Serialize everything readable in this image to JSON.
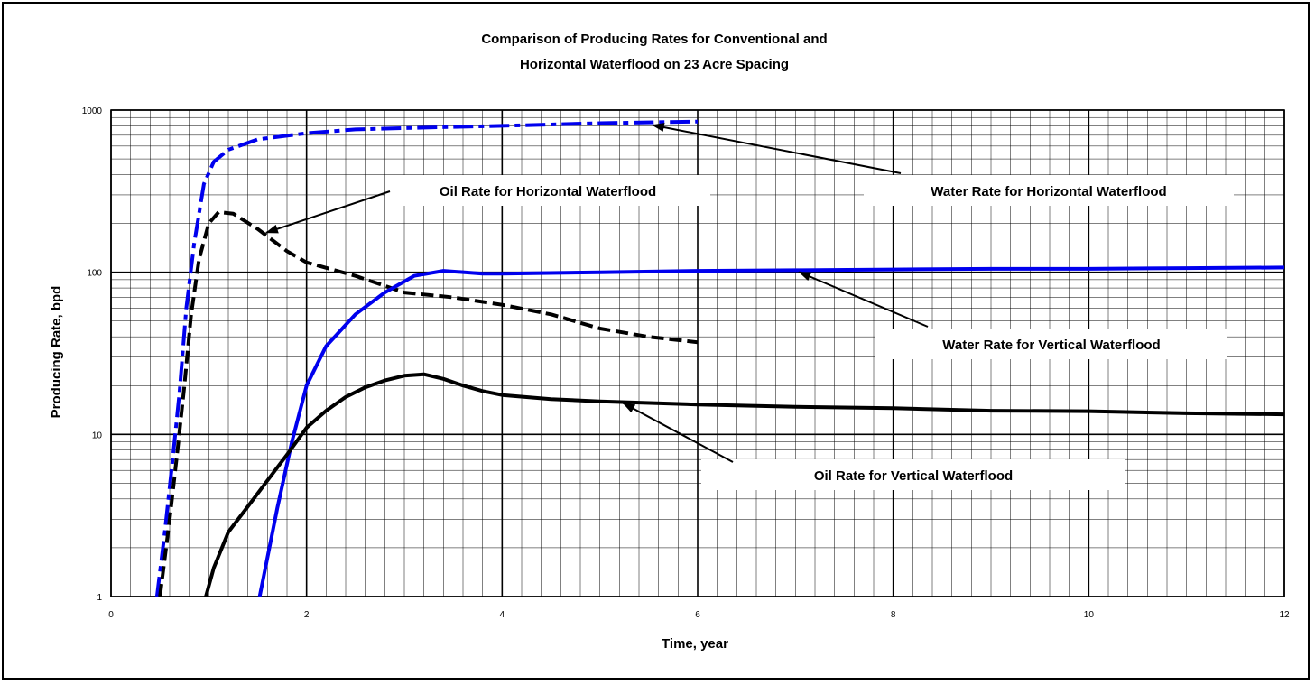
{
  "chart_data": {
    "type": "line",
    "title": [
      "Comparison of Producing Rates for Conventional and",
      "Horizontal Waterflood on 23 Acre Spacing"
    ],
    "xlabel": "Time, year",
    "ylabel": "Producing Rate, bpd",
    "xlim": [
      0,
      12
    ],
    "ylim": [
      1,
      1000
    ],
    "yscale": "log",
    "grid": true,
    "x_ticks": [
      0,
      2,
      4,
      6,
      8,
      10,
      12
    ],
    "y_ticks": [
      1,
      10,
      100,
      1000
    ],
    "series": [
      {
        "name": "Water Rate for Horizontal Waterflood",
        "color": "#0000ee",
        "style": "dashdot",
        "points": [
          [
            0.47,
            1
          ],
          [
            0.55,
            2.5
          ],
          [
            0.63,
            7
          ],
          [
            0.7,
            18
          ],
          [
            0.77,
            60
          ],
          [
            0.85,
            150
          ],
          [
            0.95,
            350
          ],
          [
            1.05,
            480
          ],
          [
            1.2,
            570
          ],
          [
            1.5,
            660
          ],
          [
            2.0,
            720
          ],
          [
            2.5,
            760
          ],
          [
            3.0,
            775
          ],
          [
            4.0,
            800
          ],
          [
            5.0,
            830
          ],
          [
            6.0,
            850
          ]
        ]
      },
      {
        "name": "Oil Rate for Horizontal Waterflood",
        "color": "#000000",
        "style": "dash",
        "points": [
          [
            0.5,
            1
          ],
          [
            0.6,
            3
          ],
          [
            0.68,
            8
          ],
          [
            0.75,
            20
          ],
          [
            0.82,
            55
          ],
          [
            0.9,
            120
          ],
          [
            1.0,
            200
          ],
          [
            1.1,
            235
          ],
          [
            1.25,
            230
          ],
          [
            1.5,
            185
          ],
          [
            1.8,
            135
          ],
          [
            2.0,
            115
          ],
          [
            2.5,
            95
          ],
          [
            3.0,
            75
          ],
          [
            3.5,
            70
          ],
          [
            4.0,
            63
          ],
          [
            4.5,
            55
          ],
          [
            5.0,
            45
          ],
          [
            5.5,
            40
          ],
          [
            6.0,
            37
          ]
        ]
      },
      {
        "name": "Water Rate for Vertical Waterflood",
        "color": "#0000ee",
        "style": "solid",
        "points": [
          [
            1.52,
            1
          ],
          [
            1.7,
            3.5
          ],
          [
            1.85,
            9
          ],
          [
            2.0,
            20
          ],
          [
            2.2,
            35
          ],
          [
            2.5,
            55
          ],
          [
            2.8,
            75
          ],
          [
            3.1,
            95
          ],
          [
            3.4,
            102
          ],
          [
            3.8,
            98
          ],
          [
            4.0,
            98
          ],
          [
            5.0,
            100
          ],
          [
            6.0,
            102
          ],
          [
            7.0,
            103
          ],
          [
            8.0,
            104
          ],
          [
            9.0,
            105
          ],
          [
            10.0,
            105
          ],
          [
            11.0,
            106
          ],
          [
            12.0,
            107
          ]
        ]
      },
      {
        "name": "Oil Rate for Vertical Waterflood",
        "color": "#000000",
        "style": "solid",
        "points": [
          [
            0.97,
            1
          ],
          [
            1.05,
            1.5
          ],
          [
            1.2,
            2.5
          ],
          [
            1.4,
            3.6
          ],
          [
            1.6,
            5.2
          ],
          [
            1.8,
            7.5
          ],
          [
            2.0,
            11
          ],
          [
            2.2,
            14
          ],
          [
            2.4,
            17
          ],
          [
            2.6,
            19.5
          ],
          [
            2.8,
            21.5
          ],
          [
            3.0,
            23
          ],
          [
            3.2,
            23.5
          ],
          [
            3.4,
            22
          ],
          [
            3.6,
            20
          ],
          [
            3.8,
            18.5
          ],
          [
            4.0,
            17.5
          ],
          [
            4.5,
            16.5
          ],
          [
            5.0,
            16
          ],
          [
            6.0,
            15.3
          ],
          [
            7.0,
            14.8
          ],
          [
            8.0,
            14.5
          ],
          [
            9.0,
            14
          ],
          [
            10.0,
            13.9
          ],
          [
            11.0,
            13.5
          ],
          [
            12.0,
            13.3
          ]
        ]
      }
    ],
    "annotations": [
      {
        "text": "Water Rate for Horizontal Waterflood",
        "arrow_to": [
          5.5,
          830
        ]
      },
      {
        "text": "Oil Rate for Horizontal Waterflood",
        "arrow_to": [
          1.55,
          180
        ]
      },
      {
        "text": "Water Rate for Vertical Waterflood",
        "arrow_to": [
          7.0,
          103
        ]
      },
      {
        "text": "Oil Rate for Vertical Waterflood",
        "arrow_to": [
          5.2,
          16
        ]
      }
    ]
  }
}
